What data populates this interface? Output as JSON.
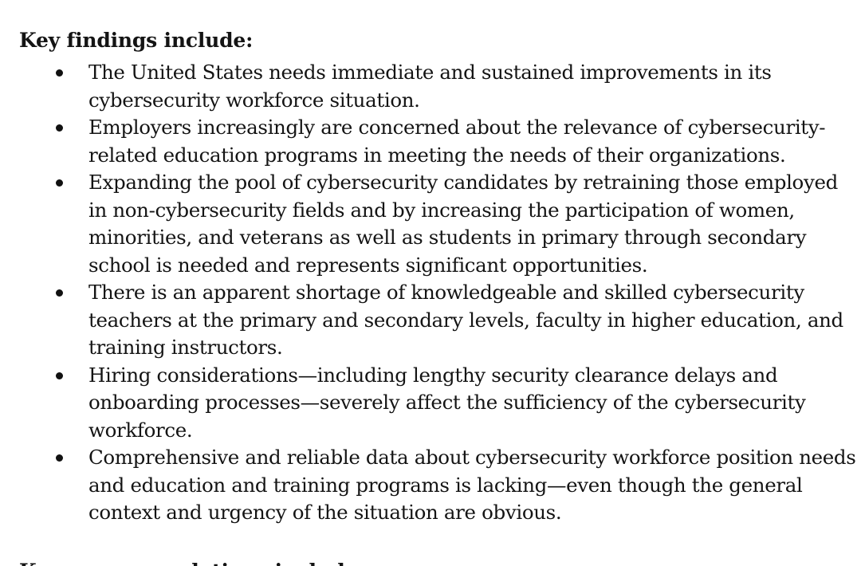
{
  "document": {
    "heading": "Key findings include:",
    "next_heading": "Key recommendations include:",
    "findings": [
      "The United States needs immediate and sustained improvements in its cybersecurity workforce situation.",
      "Employers increasingly are concerned about the relevance of cybersecurity-related education programs in meeting the needs of their organizations.",
      "Expanding the pool of cybersecurity candidates by retraining those employed in non-cybersecurity fields and by increasing the participation of women, minorities, and veterans as well as students in primary through secondary school is needed and represents significant opportunities.",
      "There is an apparent shortage of knowledgeable and skilled cybersecurity teachers at the primary and secondary levels, faculty in higher education, and training instructors.",
      "Hiring considerations—including lengthy security clearance delays and onboarding processes—severely affect the sufficiency of the cybersecurity workforce.",
      "Comprehensive and reliable data about cybersecurity workforce position needs and education and training programs is lacking—even though the general context and urgency of the situation are obvious."
    ]
  }
}
